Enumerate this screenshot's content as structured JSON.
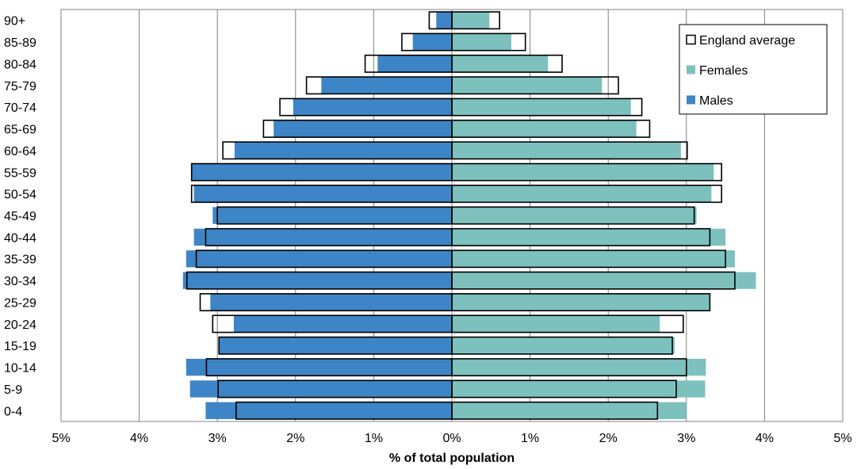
{
  "chart_data": {
    "type": "bar",
    "orientation": "horizontal",
    "layout": "population-pyramid",
    "title": "",
    "xlabel": "% of total population",
    "ylabel": "",
    "xlim": [
      -5,
      5
    ],
    "x_ticks": [
      "5%",
      "4%",
      "3%",
      "2%",
      "1%",
      "0%",
      "1%",
      "2%",
      "3%",
      "4%",
      "5%"
    ],
    "grid": true,
    "legend_position": "top-right",
    "categories": [
      "0-4",
      "5-9",
      "10-14",
      "15-19",
      "20-24",
      "25-29",
      "30-34",
      "35-39",
      "40-44",
      "45-49",
      "50-54",
      "55-59",
      "60-64",
      "65-69",
      "70-74",
      "75-79",
      "80-84",
      "85-89",
      "90+"
    ],
    "series": [
      {
        "name": "Males",
        "color": "#3d85c6",
        "values": [
          3.15,
          3.35,
          3.4,
          2.98,
          2.79,
          3.09,
          3.44,
          3.4,
          3.3,
          3.06,
          3.3,
          3.33,
          2.78,
          2.28,
          2.03,
          1.67,
          0.95,
          0.5,
          0.2
        ]
      },
      {
        "name": "Females",
        "color": "#7dc1be",
        "values": [
          3.0,
          3.24,
          3.25,
          2.85,
          2.66,
          3.3,
          3.89,
          3.62,
          3.5,
          3.13,
          3.32,
          3.35,
          2.93,
          2.36,
          2.29,
          1.92,
          1.23,
          0.76,
          0.48
        ]
      },
      {
        "name": "England average",
        "color": "#000000",
        "values_male": [
          2.76,
          2.99,
          3.14,
          2.98,
          3.06,
          3.22,
          3.39,
          3.27,
          3.15,
          3.0,
          3.33,
          3.33,
          2.93,
          2.41,
          2.2,
          1.86,
          1.11,
          0.64,
          0.29
        ],
        "values_female": [
          2.63,
          2.87,
          3.0,
          2.82,
          2.96,
          3.3,
          3.62,
          3.5,
          3.3,
          3.1,
          3.45,
          3.45,
          3.01,
          2.53,
          2.43,
          2.13,
          1.41,
          0.94,
          0.61
        ]
      }
    ]
  }
}
